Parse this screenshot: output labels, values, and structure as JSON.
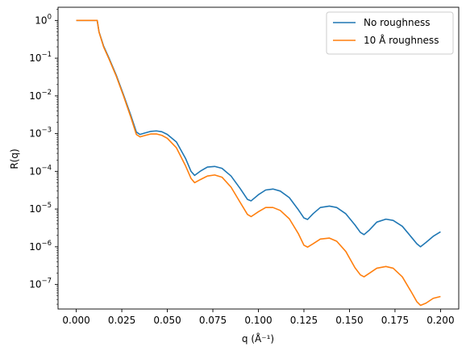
{
  "chart_data": {
    "type": "line",
    "title": "",
    "xlabel": "q (Å⁻¹)",
    "ylabel": "R(q)",
    "xlim": [
      -0.01,
      0.21
    ],
    "ylim_log10": [
      -7.65,
      0.35
    ],
    "y_scale": "log",
    "grid": false,
    "legend_position": "top-right",
    "x_ticks": [
      {
        "value": 0.0,
        "label": "0.000"
      },
      {
        "value": 0.025,
        "label": "0.025"
      },
      {
        "value": 0.05,
        "label": "0.050"
      },
      {
        "value": 0.075,
        "label": "0.075"
      },
      {
        "value": 0.1,
        "label": "0.100"
      },
      {
        "value": 0.125,
        "label": "0.125"
      },
      {
        "value": 0.15,
        "label": "0.150"
      },
      {
        "value": 0.175,
        "label": "0.175"
      },
      {
        "value": 0.2,
        "label": "0.200"
      }
    ],
    "y_ticks": [
      {
        "exp": 0,
        "base": "10",
        "sup": "0"
      },
      {
        "exp": -1,
        "base": "10",
        "sup": "−1"
      },
      {
        "exp": -2,
        "base": "10",
        "sup": "−2"
      },
      {
        "exp": -3,
        "base": "10",
        "sup": "−3"
      },
      {
        "exp": -4,
        "base": "10",
        "sup": "−4"
      },
      {
        "exp": -5,
        "base": "10",
        "sup": "−5"
      },
      {
        "exp": -6,
        "base": "10",
        "sup": "−6"
      },
      {
        "exp": -7,
        "base": "10",
        "sup": "−7"
      }
    ],
    "series": [
      {
        "name": "No roughness",
        "color": "#1f77b4",
        "points": [
          [
            0.0,
            1.0
          ],
          [
            0.005,
            1.0
          ],
          [
            0.0115,
            1.0
          ],
          [
            0.0125,
            0.5
          ],
          [
            0.015,
            0.21
          ],
          [
            0.018,
            0.1
          ],
          [
            0.022,
            0.035
          ],
          [
            0.026,
            0.0105
          ],
          [
            0.03,
            0.003
          ],
          [
            0.033,
            0.0011
          ],
          [
            0.035,
            0.00095
          ],
          [
            0.038,
            0.00105
          ],
          [
            0.041,
            0.00115
          ],
          [
            0.044,
            0.00118
          ],
          [
            0.047,
            0.00112
          ],
          [
            0.05,
            0.00095
          ],
          [
            0.055,
            0.0006
          ],
          [
            0.06,
            0.00022
          ],
          [
            0.063,
            0.0001
          ],
          [
            0.065,
            7.8e-05
          ],
          [
            0.068,
            0.0001
          ],
          [
            0.072,
            0.00013
          ],
          [
            0.076,
            0.000135
          ],
          [
            0.08,
            0.00012
          ],
          [
            0.085,
            7.5e-05
          ],
          [
            0.09,
            3.5e-05
          ],
          [
            0.094,
            1.8e-05
          ],
          [
            0.096,
            1.65e-05
          ],
          [
            0.1,
            2.4e-05
          ],
          [
            0.104,
            3.2e-05
          ],
          [
            0.108,
            3.4e-05
          ],
          [
            0.112,
            3e-05
          ],
          [
            0.117,
            2e-05
          ],
          [
            0.122,
            9.5e-06
          ],
          [
            0.125,
            5.8e-06
          ],
          [
            0.127,
            5.3e-06
          ],
          [
            0.13,
            7.5e-06
          ],
          [
            0.134,
            1.1e-05
          ],
          [
            0.139,
            1.2e-05
          ],
          [
            0.143,
            1.1e-05
          ],
          [
            0.148,
            7.5e-06
          ],
          [
            0.153,
            3.8e-06
          ],
          [
            0.156,
            2.4e-06
          ],
          [
            0.158,
            2.1e-06
          ],
          [
            0.161,
            2.8e-06
          ],
          [
            0.165,
            4.5e-06
          ],
          [
            0.17,
            5.4e-06
          ],
          [
            0.174,
            5e-06
          ],
          [
            0.179,
            3.5e-06
          ],
          [
            0.184,
            1.8e-06
          ],
          [
            0.187,
            1.2e-06
          ],
          [
            0.189,
            1e-06
          ],
          [
            0.192,
            1.3e-06
          ],
          [
            0.196,
            1.9e-06
          ],
          [
            0.2,
            2.5e-06
          ]
        ]
      },
      {
        "name": "10 Å roughness",
        "color": "#ff7f0e",
        "points": [
          [
            0.0,
            1.0
          ],
          [
            0.005,
            1.0
          ],
          [
            0.0115,
            1.0
          ],
          [
            0.0125,
            0.49
          ],
          [
            0.015,
            0.2
          ],
          [
            0.018,
            0.095
          ],
          [
            0.022,
            0.033
          ],
          [
            0.026,
            0.0098
          ],
          [
            0.03,
            0.0027
          ],
          [
            0.033,
            0.00095
          ],
          [
            0.035,
            0.00082
          ],
          [
            0.038,
            0.0009
          ],
          [
            0.041,
            0.00098
          ],
          [
            0.044,
            0.00098
          ],
          [
            0.047,
            0.0009
          ],
          [
            0.05,
            0.00075
          ],
          [
            0.055,
            0.00042
          ],
          [
            0.06,
            0.00014
          ],
          [
            0.063,
            6.5e-05
          ],
          [
            0.065,
            5e-05
          ],
          [
            0.068,
            6e-05
          ],
          [
            0.072,
            7.5e-05
          ],
          [
            0.076,
            8e-05
          ],
          [
            0.08,
            7e-05
          ],
          [
            0.085,
            3.8e-05
          ],
          [
            0.09,
            1.5e-05
          ],
          [
            0.094,
            7.2e-06
          ],
          [
            0.096,
            6.3e-06
          ],
          [
            0.1,
            8.5e-06
          ],
          [
            0.104,
            1.1e-05
          ],
          [
            0.108,
            1.1e-05
          ],
          [
            0.112,
            9.2e-06
          ],
          [
            0.117,
            5.5e-06
          ],
          [
            0.122,
            2.2e-06
          ],
          [
            0.125,
            1.1e-06
          ],
          [
            0.127,
            9.8e-07
          ],
          [
            0.13,
            1.2e-06
          ],
          [
            0.134,
            1.6e-06
          ],
          [
            0.139,
            1.7e-06
          ],
          [
            0.143,
            1.4e-06
          ],
          [
            0.148,
            7.5e-07
          ],
          [
            0.153,
            2.8e-07
          ],
          [
            0.156,
            1.8e-07
          ],
          [
            0.158,
            1.6e-07
          ],
          [
            0.161,
            2e-07
          ],
          [
            0.165,
            2.7e-07
          ],
          [
            0.17,
            3e-07
          ],
          [
            0.174,
            2.7e-07
          ],
          [
            0.179,
            1.6e-07
          ],
          [
            0.184,
            6.3e-08
          ],
          [
            0.187,
            3.5e-08
          ],
          [
            0.189,
            2.8e-08
          ],
          [
            0.192,
            3.2e-08
          ],
          [
            0.196,
            4.3e-08
          ],
          [
            0.2,
            4.8e-08
          ]
        ]
      }
    ]
  }
}
